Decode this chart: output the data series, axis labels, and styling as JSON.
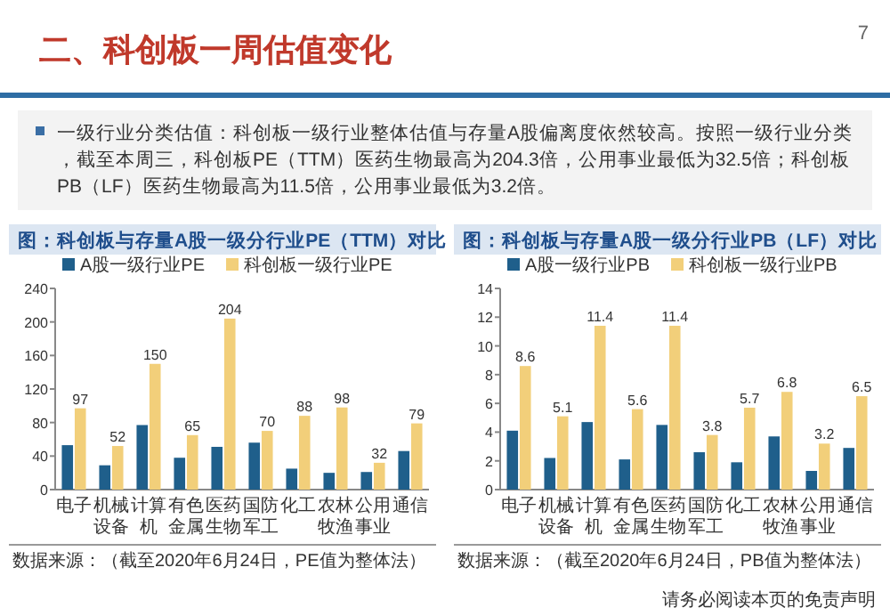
{
  "chart_data": [
    {
      "type": "other",
      "title": "二、科创板一周估值变化",
      "annotations": [
        "一级行业分类估值：科创板一级行业整体估值与存量A股偏离度依然较高。按照一级行业分类，截至本周三，科创板PE（TTM）医药生物最高为204.3倍，公用事业最低为32.5倍；科创板PB（LF）医药生物最高为11.5倍，公用事业最低为3.2倍。",
        "7",
        "请务必阅读本页的免责声明"
      ]
    },
    {
      "type": "bar",
      "title": "图：科创板与存量A股一级分行业PE（TTM）对比",
      "categories": [
        "电子",
        "机械设备",
        "计算机",
        "有色金属",
        "医药生物",
        "国防军工",
        "化工",
        "农林牧渔",
        "公用事业",
        "通信"
      ],
      "series": [
        {
          "name": "A股一级行业PE",
          "color": "#1f5f8b",
          "values": [
            53,
            29,
            77,
            38,
            51,
            56,
            25,
            20,
            21,
            46
          ]
        },
        {
          "name": "科创板一级行业PE",
          "color": "#f2cf7a",
          "values": [
            97,
            52,
            150,
            65,
            204,
            70,
            88,
            98,
            32,
            79
          ],
          "value_labels": [
            "97",
            "52",
            "150",
            "65",
            "204",
            "70",
            "88",
            "98",
            "32",
            "79"
          ]
        }
      ],
      "ylim": [
        0,
        240
      ],
      "yticks": [
        0,
        40,
        80,
        120,
        160,
        200,
        240
      ],
      "legend": "top",
      "annotations": [
        "数据来源：（截至2020年6月24日，PE值为整体法）"
      ]
    },
    {
      "type": "bar",
      "title": "图：科创板与存量A股一级分行业PB（LF）对比",
      "categories": [
        "电子",
        "机械设备",
        "计算机",
        "有色金属",
        "医药生物",
        "国防军工",
        "化工",
        "农林牧渔",
        "公用事业",
        "通信"
      ],
      "series": [
        {
          "name": "A股一级行业PB",
          "color": "#1f5f8b",
          "values": [
            4.1,
            2.2,
            4.7,
            2.1,
            4.5,
            2.6,
            1.9,
            3.7,
            1.3,
            2.9
          ]
        },
        {
          "name": "科创板一级行业PB",
          "color": "#f2cf7a",
          "values": [
            8.6,
            5.1,
            11.4,
            5.6,
            11.4,
            3.8,
            5.7,
            6.8,
            3.2,
            6.5
          ],
          "value_labels": [
            "8.6",
            "5.1",
            "11.4",
            "5.6",
            "11.4",
            "3.8",
            "5.7",
            "6.8",
            "3.2",
            "6.5"
          ]
        }
      ],
      "ylim": [
        0,
        14
      ],
      "yticks": [
        0,
        2,
        4,
        6,
        8,
        10,
        12,
        14
      ],
      "legend": "top",
      "annotations": [
        "数据来源：（截至2020年6月24日，PB值为整体法）"
      ]
    }
  ]
}
